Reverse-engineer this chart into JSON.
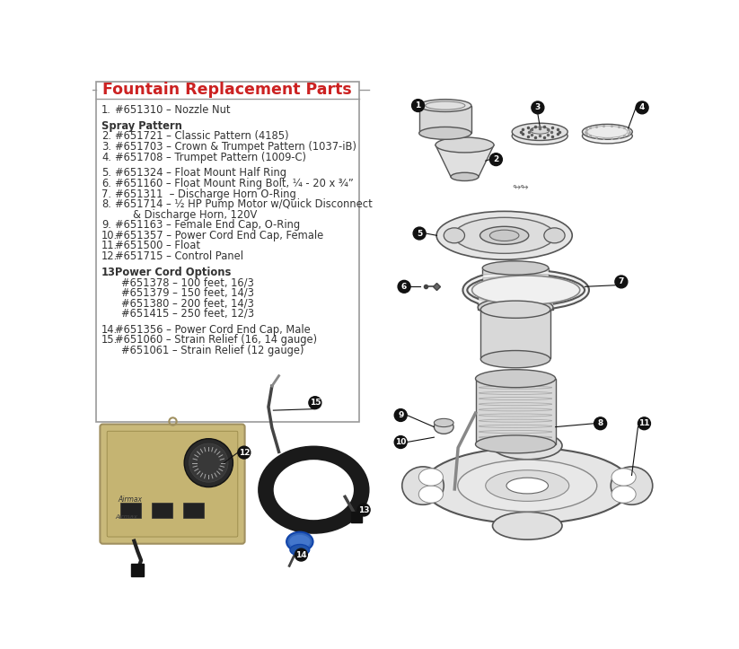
{
  "title": "Fountain Replacement Parts",
  "bg_color": "#ffffff",
  "border_color": "#999999",
  "title_color": "#cc2222",
  "text_color": "#333333",
  "parts_list": [
    {
      "num": "1.",
      "indent": 1,
      "text": "#651310 – Nozzle Nut"
    },
    {
      "num": "",
      "indent": 0,
      "text": ""
    },
    {
      "num": "",
      "indent": 0,
      "text": "Spray Pattern",
      "bold": true
    },
    {
      "num": "2.",
      "indent": 1,
      "text": "#651721 – Classic Pattern (4185)"
    },
    {
      "num": "3.",
      "indent": 1,
      "text": "#651703 – Crown & Trumpet Pattern (1037-iB)"
    },
    {
      "num": "4.",
      "indent": 1,
      "text": "#651708 – Trumpet Pattern (1009-C)"
    },
    {
      "num": "",
      "indent": 0,
      "text": ""
    },
    {
      "num": "5.",
      "indent": 1,
      "text": "#651324 – Float Mount Half Ring"
    },
    {
      "num": "6.",
      "indent": 1,
      "text": "#651160 – Float Mount Ring Bolt, ¼ - 20 x ¾”"
    },
    {
      "num": "7.",
      "indent": 1,
      "text": "#651311  – Discharge Horn O-Ring"
    },
    {
      "num": "8.",
      "indent": 1,
      "text": "#651714 – ½ HP Pump Motor w/Quick Disconnect"
    },
    {
      "num": "",
      "indent": 3,
      "text": "& Discharge Horn, 120V"
    },
    {
      "num": "9.",
      "indent": 1,
      "text": "#651163 – Female End Cap, O-Ring"
    },
    {
      "num": "10.",
      "indent": 1,
      "text": "#651357 – Power Cord End Cap, Female"
    },
    {
      "num": "11.",
      "indent": 1,
      "text": "#651500 – Float"
    },
    {
      "num": "12.",
      "indent": 1,
      "text": "#651715 – Control Panel"
    },
    {
      "num": "",
      "indent": 0,
      "text": ""
    },
    {
      "num": "13.",
      "indent": 0,
      "text": "Power Cord Options",
      "bold": true
    },
    {
      "num": "",
      "indent": 2,
      "text": "#651378 – 100 feet, 16/3"
    },
    {
      "num": "",
      "indent": 2,
      "text": "#651379 – 150 feet, 14/3"
    },
    {
      "num": "",
      "indent": 2,
      "text": "#651380 – 200 feet, 14/3"
    },
    {
      "num": "",
      "indent": 2,
      "text": "#651415 – 250 feet, 12/3"
    },
    {
      "num": "",
      "indent": 0,
      "text": ""
    },
    {
      "num": "14.",
      "indent": 1,
      "text": "#651356 – Power Cord End Cap, Male"
    },
    {
      "num": "15.",
      "indent": 1,
      "text": "#651060 – Strain Relief (16, 14 gauge)"
    },
    {
      "num": "",
      "indent": 2,
      "text": "#651061 – Strain Relief (12 gauge)"
    }
  ]
}
